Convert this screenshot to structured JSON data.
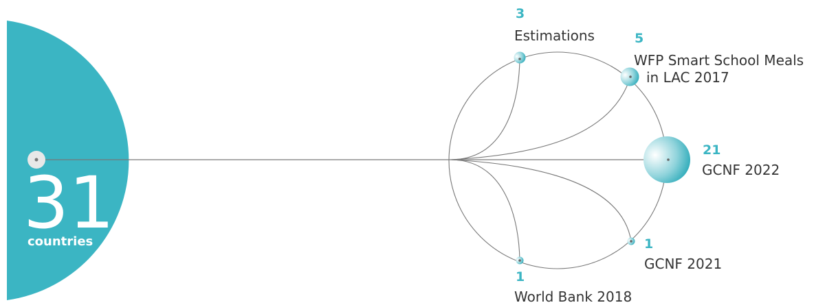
{
  "colors": {
    "teal": "#3bb5c3",
    "line": "#777777",
    "text": "#333333",
    "white_dot": "#e8e8e8"
  },
  "total": {
    "value": "31",
    "caption": "countries"
  },
  "sources": [
    {
      "count": "3",
      "name": "Estimations"
    },
    {
      "count": "5",
      "name": "WFP Smart School Meals",
      "name_line2": "in LAC 2017"
    },
    {
      "count": "21",
      "name": "GCNF 2022"
    },
    {
      "count": "1",
      "name": "GCNF 2021"
    },
    {
      "count": "1",
      "name": "World Bank 2018"
    }
  ]
}
